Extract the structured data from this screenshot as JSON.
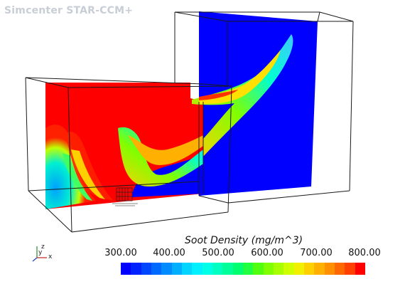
{
  "app": {
    "watermark": "Simcenter STAR-CCM+"
  },
  "scene": {
    "field": "Soot Density",
    "colors": {
      "background": "#ffffff",
      "outline": "#1a1a1a",
      "low": "#0000ff",
      "high": "#ff0000"
    }
  },
  "legend": {
    "title": "Soot Density (mg/m^3)",
    "ticks": [
      "300.00",
      "400.00",
      "500.00",
      "600.00",
      "700.00",
      "800.00"
    ],
    "min": 300,
    "max": 800,
    "colors": [
      "#0000ff",
      "#0022ff",
      "#0046ff",
      "#006aff",
      "#008cff",
      "#00b0ff",
      "#00d4ff",
      "#00f0ff",
      "#00ffe8",
      "#00ffc0",
      "#00ff98",
      "#00ff70",
      "#20ff40",
      "#50ff10",
      "#80ff00",
      "#a8ff00",
      "#d0ff00",
      "#f0f000",
      "#ffd000",
      "#ffb000",
      "#ff9000",
      "#ff6800",
      "#ff4000",
      "#ff0000"
    ]
  },
  "axes_triad": {
    "x_label": "x",
    "y_label": "y",
    "z_label": "z"
  }
}
